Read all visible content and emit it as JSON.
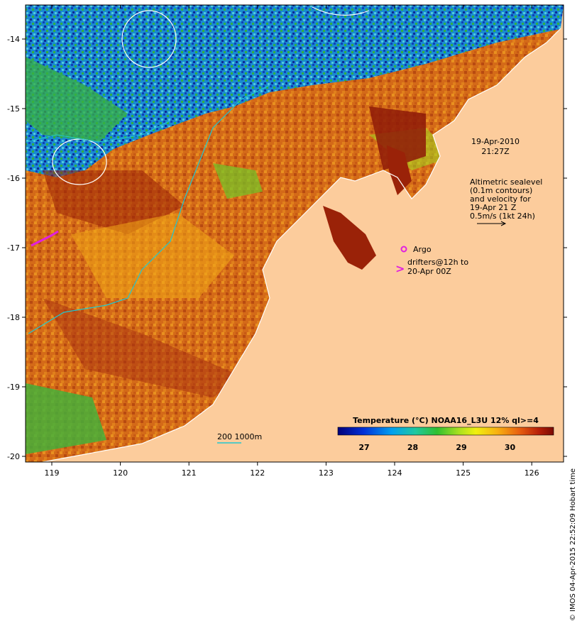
{
  "map": {
    "timestamp_line1": "19-Apr-2010",
    "timestamp_line2": "21:27Z",
    "altimetry_lines": [
      "Altimetric sealevel",
      "(0.1m contours)",
      "and velocity for",
      "19-Apr 21 Z",
      "0.5m/s (1kt 24h)"
    ],
    "argo_label": "Argo",
    "drifters_line1": "drifters@12h to",
    "drifters_line2": "20-Apr 00Z",
    "bathy_label": "200  1000m",
    "credit": "© IMOS 04-Apr-2015 22:52:09 Hobart time",
    "lon_ticks": [
      "119",
      "120",
      "121",
      "122",
      "123",
      "124",
      "125",
      "126"
    ],
    "lat_ticks": [
      "-14",
      "-15",
      "-16",
      "-17",
      "-18",
      "-19",
      "-20"
    ],
    "colorbar": {
      "title": "Temperature (°C) NOAA16_L3U 12% ql>=4",
      "ticks": [
        "27",
        "28",
        "29",
        "30"
      ]
    },
    "colors": {
      "land": "#fccc9c",
      "warm": "#c84a14",
      "hot": "#8e1a08",
      "mid": "#e8a01c",
      "cool": "#28a83c",
      "cold": "#1446c8",
      "contour_white": "#ffffff",
      "contour_cyan": "#20c8d0",
      "argo": "#e020e0"
    }
  }
}
